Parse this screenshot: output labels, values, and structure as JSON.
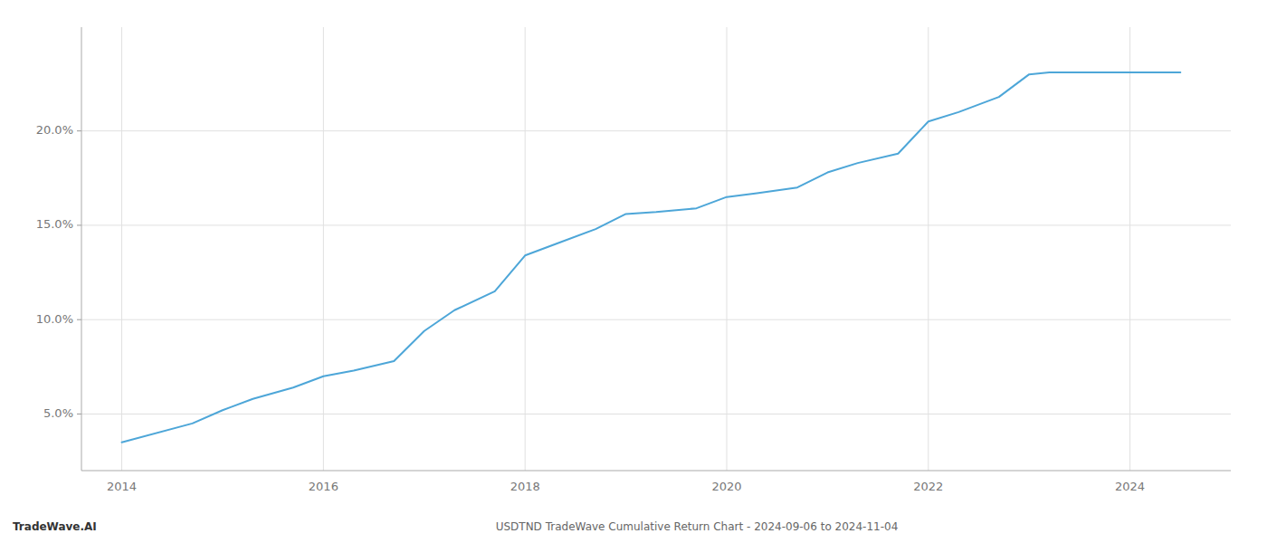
{
  "chart_data": {
    "type": "line",
    "title": "USDTND TradeWave Cumulative Return Chart - 2024-09-06 to 2024-11-04",
    "annotations": [
      "TradeWave.AI"
    ],
    "x": [
      2014.0,
      2014.7,
      2015.0,
      2015.3,
      2015.7,
      2016.0,
      2016.3,
      2016.7,
      2017.0,
      2017.3,
      2017.7,
      2018.0,
      2018.3,
      2018.7,
      2019.0,
      2019.3,
      2019.7,
      2020.0,
      2020.3,
      2020.7,
      2021.0,
      2021.3,
      2021.7,
      2022.0,
      2022.3,
      2022.7,
      2023.0,
      2023.2,
      2023.5,
      2024.0,
      2024.5
    ],
    "values": [
      3.5,
      4.5,
      5.2,
      5.8,
      6.4,
      7.0,
      7.3,
      7.8,
      9.4,
      10.5,
      11.5,
      13.4,
      14.0,
      14.8,
      15.6,
      15.7,
      15.9,
      16.5,
      16.7,
      17.0,
      17.8,
      18.3,
      18.8,
      20.5,
      21.0,
      21.8,
      23.0,
      23.1,
      23.1,
      23.1,
      23.1
    ],
    "color": "#4da6d8",
    "xlim": [
      2013.6,
      2025.0
    ],
    "xticks": [
      2014,
      2016,
      2018,
      2020,
      2022,
      2024
    ],
    "ylim": [
      2.0,
      25.5
    ],
    "yticks": [
      {
        "value": 5.0,
        "label": "5.0%"
      },
      {
        "value": 10.0,
        "label": "10.0%"
      },
      {
        "value": 15.0,
        "label": "15.0%"
      },
      {
        "value": 20.0,
        "label": "20.0%"
      }
    ],
    "grid": true
  }
}
